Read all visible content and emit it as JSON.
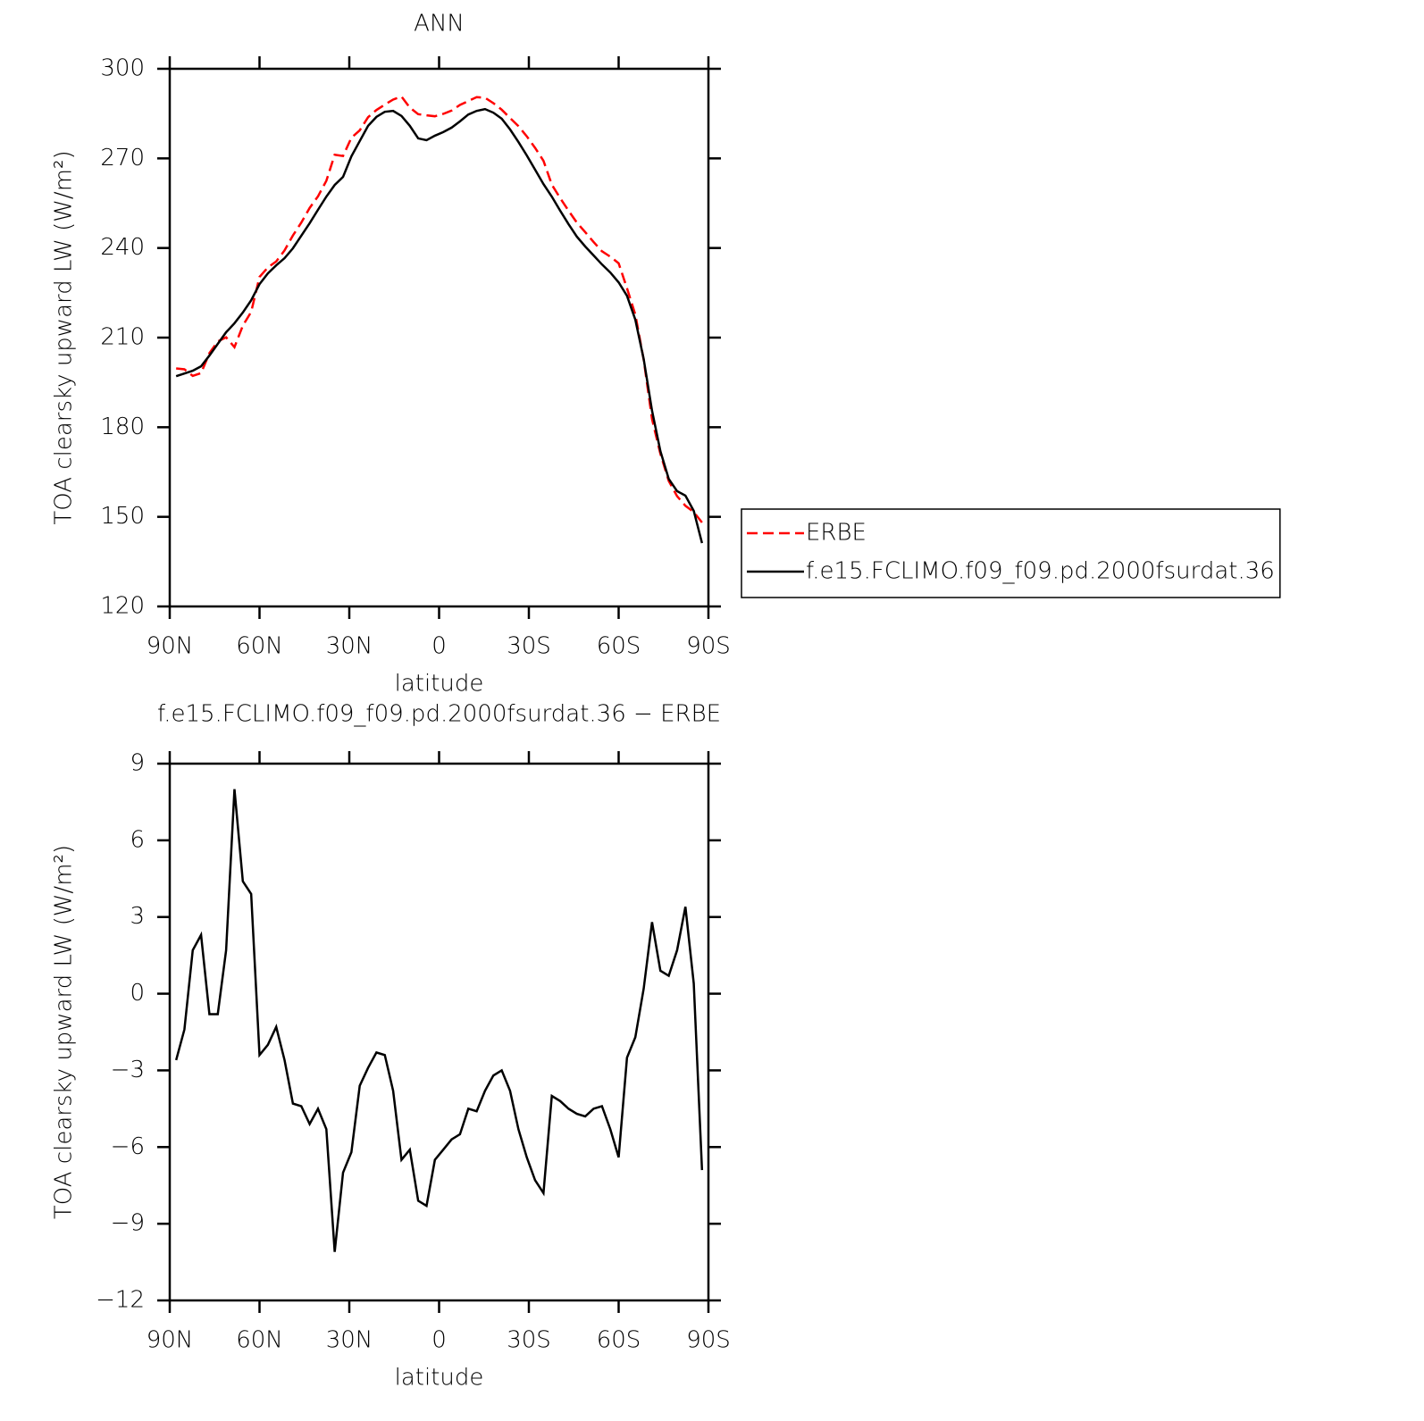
{
  "chart_data": [
    {
      "type": "line",
      "title": "ANN",
      "xlabel": "latitude",
      "ylabel": "TOA clearsky upward LW (W/m²)",
      "x": [
        87.86,
        85.1,
        82.31,
        79.53,
        76.74,
        73.95,
        71.16,
        68.37,
        65.58,
        62.79,
        60.0,
        57.21,
        54.42,
        51.63,
        48.84,
        46.04,
        43.25,
        40.46,
        37.67,
        34.88,
        32.09,
        29.3,
        26.51,
        23.72,
        20.93,
        18.14,
        15.35,
        12.56,
        9.77,
        6.98,
        4.19,
        1.4,
        -1.4,
        -4.19,
        -6.98,
        -9.77,
        -12.56,
        -15.35,
        -18.14,
        -20.93,
        -23.72,
        -26.51,
        -29.3,
        -32.09,
        -34.88,
        -37.67,
        -40.46,
        -43.25,
        -46.04,
        -48.84,
        -51.63,
        -54.42,
        -57.21,
        -60.0,
        -62.79,
        -65.58,
        -68.37,
        -71.16,
        -73.95,
        -76.74,
        -79.53,
        -82.31,
        -85.1,
        -87.86
      ],
      "xlim": [
        90,
        -90
      ],
      "xticks": [
        {
          "value": 90,
          "label": "90N"
        },
        {
          "value": 60,
          "label": "60N"
        },
        {
          "value": 30,
          "label": "30N"
        },
        0,
        {
          "value": -30,
          "label": "30S"
        },
        {
          "value": -60,
          "label": "60S"
        },
        {
          "value": -90,
          "label": "90S"
        }
      ],
      "ylim": [
        120,
        300
      ],
      "yticks": [
        120,
        150,
        180,
        210,
        240,
        270,
        300
      ],
      "legend": "right",
      "series": [
        {
          "name": "ERBE",
          "color": "#ff0000",
          "linestyle": "dashed",
          "values": [
            199.7,
            199.4,
            197.2,
            198.1,
            204.8,
            208.7,
            210.1,
            206.8,
            214.0,
            218.6,
            230.3,
            233.5,
            235.5,
            239.2,
            244.2,
            248.5,
            253.4,
            257.3,
            262.5,
            271.2,
            270.8,
            276.9,
            279.4,
            283.8,
            286.2,
            288.0,
            289.7,
            290.7,
            287.0,
            284.8,
            284.4,
            284.1,
            284.9,
            286.0,
            287.9,
            289.2,
            290.5,
            290.3,
            288.5,
            286.3,
            283.5,
            280.8,
            277.4,
            273.5,
            269.2,
            261.2,
            256.7,
            252.5,
            248.5,
            245.3,
            242.0,
            238.9,
            237.1,
            234.9,
            226.5,
            217.7,
            202.6,
            182.7,
            171.1,
            162.0,
            156.9,
            153.7,
            151.6,
            148.1
          ]
        },
        {
          "name": "f.e15.FCLIMO.f09_f09.pd.2000fsurdat.36",
          "color": "#000000",
          "linestyle": "solid",
          "values": [
            197.1,
            198.0,
            198.9,
            200.4,
            204.0,
            207.9,
            211.8,
            214.8,
            218.4,
            222.5,
            227.9,
            231.5,
            234.2,
            236.6,
            239.9,
            244.1,
            248.3,
            252.8,
            257.2,
            261.1,
            263.8,
            270.7,
            275.8,
            280.9,
            283.9,
            285.6,
            285.9,
            284.2,
            280.9,
            276.7,
            276.1,
            277.6,
            278.8,
            280.3,
            282.4,
            284.7,
            285.9,
            286.5,
            285.3,
            283.3,
            279.7,
            275.5,
            271.0,
            266.2,
            261.4,
            257.2,
            252.5,
            248.0,
            243.8,
            240.5,
            237.5,
            234.5,
            231.8,
            228.5,
            224.0,
            216.0,
            202.8,
            185.5,
            172.0,
            162.7,
            158.6,
            157.1,
            152.0,
            141.2
          ]
        }
      ]
    },
    {
      "type": "line",
      "title": "f.e15.FCLIMO.f09_f09.pd.2000fsurdat.36 − ERBE",
      "xlabel": "latitude",
      "ylabel": "TOA clearsky upward LW (W/m²)",
      "x": [
        87.86,
        85.1,
        82.31,
        79.53,
        76.74,
        73.95,
        71.16,
        68.37,
        65.58,
        62.79,
        60.0,
        57.21,
        54.42,
        51.63,
        48.84,
        46.04,
        43.25,
        40.46,
        37.67,
        34.88,
        32.09,
        29.3,
        26.51,
        23.72,
        20.93,
        18.14,
        15.35,
        12.56,
        9.77,
        6.98,
        4.19,
        1.4,
        -1.4,
        -4.19,
        -6.98,
        -9.77,
        -12.56,
        -15.35,
        -18.14,
        -20.93,
        -23.72,
        -26.51,
        -29.3,
        -32.09,
        -34.88,
        -37.67,
        -40.46,
        -43.25,
        -46.04,
        -48.84,
        -51.63,
        -54.42,
        -57.21,
        -60.0,
        -62.79,
        -65.58,
        -68.37,
        -71.16,
        -73.95,
        -76.74,
        -79.53,
        -82.31,
        -85.1,
        -87.86
      ],
      "xlim": [
        90,
        -90
      ],
      "xticks": [
        {
          "value": 90,
          "label": "90N"
        },
        {
          "value": 60,
          "label": "60N"
        },
        {
          "value": 30,
          "label": "30N"
        },
        0,
        {
          "value": -30,
          "label": "30S"
        },
        {
          "value": -60,
          "label": "60S"
        },
        {
          "value": -90,
          "label": "90S"
        }
      ],
      "ylim": [
        -12,
        9
      ],
      "yticks": [
        {
          "value": -12,
          "label": "−12"
        },
        {
          "value": -9,
          "label": "−9"
        },
        {
          "value": -6,
          "label": "−6"
        },
        {
          "value": -3,
          "label": "−3"
        },
        0,
        3,
        6,
        9
      ],
      "series": [
        {
          "color": "#000000",
          "linestyle": "solid",
          "values": [
            -2.6,
            -1.4,
            1.7,
            2.3,
            -0.8,
            -0.8,
            1.7,
            8.0,
            4.4,
            3.9,
            -2.4,
            -2.0,
            -1.3,
            -2.6,
            -4.3,
            -4.4,
            -5.1,
            -4.5,
            -5.3,
            -10.1,
            -7.0,
            -6.2,
            -3.6,
            -2.9,
            -2.3,
            -2.4,
            -3.8,
            -6.5,
            -6.1,
            -8.1,
            -8.3,
            -6.5,
            -6.1,
            -5.7,
            -5.5,
            -4.5,
            -4.6,
            -3.8,
            -3.2,
            -3.0,
            -3.8,
            -5.3,
            -6.4,
            -7.3,
            -7.8,
            -4.0,
            -4.2,
            -4.5,
            -4.7,
            -4.8,
            -4.5,
            -4.4,
            -5.3,
            -6.4,
            -2.5,
            -1.7,
            0.2,
            2.8,
            0.9,
            0.7,
            1.7,
            3.4,
            0.4,
            -6.9
          ]
        }
      ]
    }
  ]
}
